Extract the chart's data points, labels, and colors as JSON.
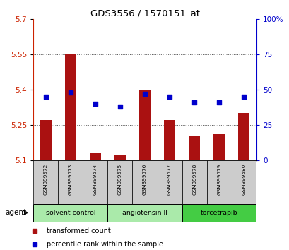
{
  "title": "GDS3556 / 1570151_at",
  "samples": [
    "GSM399572",
    "GSM399573",
    "GSM399574",
    "GSM399575",
    "GSM399576",
    "GSM399577",
    "GSM399578",
    "GSM399579",
    "GSM399580"
  ],
  "transformed_count": [
    5.27,
    5.548,
    5.13,
    5.12,
    5.395,
    5.27,
    5.205,
    5.21,
    5.3
  ],
  "percentile_rank": [
    45,
    48,
    40,
    38,
    47,
    45,
    41,
    41,
    45
  ],
  "ylim_left": [
    5.1,
    5.7
  ],
  "ylim_right": [
    0,
    100
  ],
  "yticks_left": [
    5.1,
    5.25,
    5.4,
    5.55,
    5.7
  ],
  "yticks_right": [
    0,
    25,
    50,
    75,
    100
  ],
  "bar_color": "#aa1111",
  "dot_color": "#0000cc",
  "group_boundaries": [
    {
      "start": 0,
      "end": 2,
      "label": "solvent control",
      "color": "#aaeaaa"
    },
    {
      "start": 3,
      "end": 5,
      "label": "angiotensin II",
      "color": "#aaeaaa"
    },
    {
      "start": 6,
      "end": 8,
      "label": "torcetrapib",
      "color": "#44cc44"
    }
  ],
  "agent_label": "agent",
  "legend_bar_label": "transformed count",
  "legend_dot_label": "percentile rank within the sample",
  "grid_color": "#555555",
  "tick_label_color_left": "#cc2200",
  "tick_label_color_right": "#0000cc",
  "bar_width": 0.45,
  "sample_bg_color": "#cccccc"
}
